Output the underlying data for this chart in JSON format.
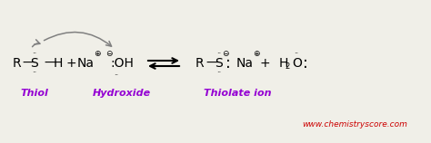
{
  "bg_color": "#f0efe8",
  "text_color": "#000000",
  "purple_color": "#9400D3",
  "red_color": "#cc0000",
  "gray_color": "#808080",
  "website": "www.chemistryscore.com",
  "label_thiol": "Thiol",
  "label_hydroxide": "Hydroxide",
  "label_thiolate": "Thiolate ion",
  "fig_w": 4.74,
  "fig_h": 1.58,
  "dpi": 100
}
